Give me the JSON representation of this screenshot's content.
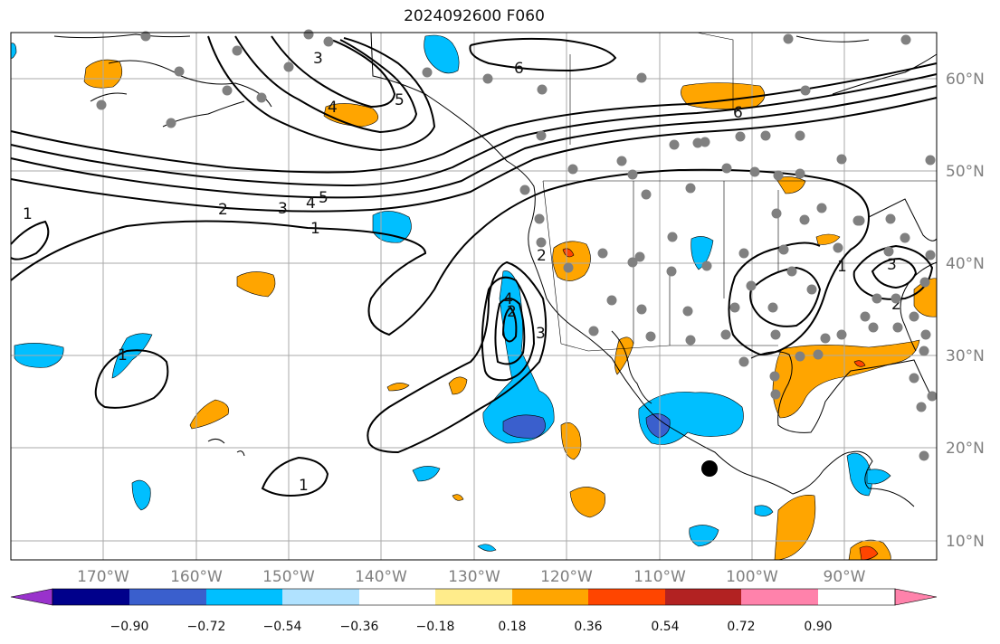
{
  "title": "2024092600 F060",
  "longitude_ticks": [
    "170°W",
    "160°W",
    "150°W",
    "140°W",
    "130°W",
    "120°W",
    "110°W",
    "100°W",
    "90°W"
  ],
  "latitude_ticks": [
    "60°N",
    "50°N",
    "40°N",
    "30°N",
    "20°N",
    "10°N"
  ],
  "colorbar": {
    "labels": [
      "−0.90",
      "−0.72",
      "−0.54",
      "−0.36",
      "−0.18",
      "0.18",
      "0.36",
      "0.54",
      "0.72",
      "0.90"
    ],
    "colors": [
      "#9932cc",
      "#00008b",
      "#3a5fcd",
      "#00bfff",
      "#b0e2ff",
      "#ffffff",
      "#ffec8b",
      "#ffa500",
      "#ff4500",
      "#b22222",
      "#ff82ab"
    ]
  },
  "contour_labels": [
    "1",
    "2",
    "3",
    "4",
    "5",
    "6",
    "1",
    "2",
    "3",
    "4",
    "5",
    "6",
    "1",
    "2",
    "3",
    "4",
    "1",
    "1",
    "2",
    "3"
  ],
  "marker": "storm-center-dot"
}
